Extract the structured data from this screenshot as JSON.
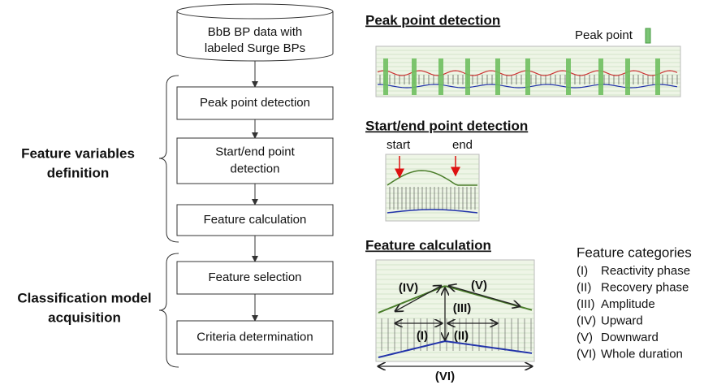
{
  "flowchart": {
    "database": [
      "BbB BP data with",
      "labeled Surge BPs"
    ],
    "steps": [
      [
        "Peak point detection"
      ],
      [
        "Start/end point",
        "detection"
      ],
      [
        "Feature calculation"
      ],
      [
        "Feature selection"
      ],
      [
        "Criteria determination"
      ]
    ],
    "groups": [
      [
        "Feature variables",
        "definition"
      ],
      [
        "Classification model",
        "acquisition"
      ]
    ]
  },
  "panels": {
    "peak": {
      "title": "Peak point detection",
      "legend": "Peak point"
    },
    "start_end": {
      "title": "Start/end point detection",
      "start": "start",
      "end": "end"
    },
    "feature": {
      "title": "Feature calculation",
      "labels": [
        "(IV)",
        "(V)",
        "(III)",
        "(I)",
        "(II)",
        "(VI)"
      ]
    }
  },
  "categories": {
    "title": "Feature categories",
    "items": [
      [
        "(I)",
        "Reactivity phase"
      ],
      [
        "(II)",
        "Recovery phase"
      ],
      [
        "(III)",
        "Amplitude"
      ],
      [
        "(IV)",
        "Upward"
      ],
      [
        "(V)",
        "Downward"
      ],
      [
        "(VI)",
        "Whole duration"
      ]
    ]
  }
}
